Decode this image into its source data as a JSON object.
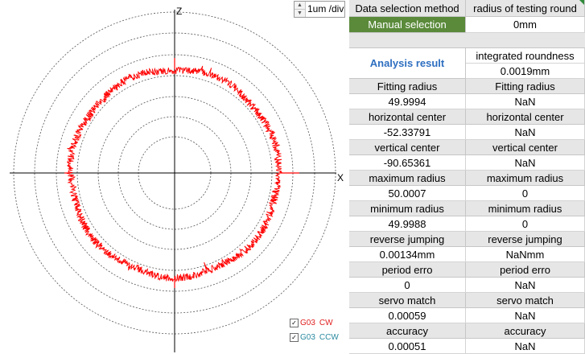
{
  "plot": {
    "z_label": "Z",
    "x_label": "X",
    "scale_value": "1um /div",
    "trace_color": "#ff0000",
    "grid_color": "#555555"
  },
  "legend": [
    {
      "checked": true,
      "code": "G03",
      "label": "CW",
      "color": "#e02020"
    },
    {
      "checked": true,
      "code": "G03",
      "label": "CCW",
      "color": "#2a8aa0"
    }
  ],
  "panel": {
    "header": {
      "left": "Data selection method",
      "right": "radius of testing round"
    },
    "selection": {
      "left": "Manual selection",
      "right": "0mm"
    },
    "analysis_label": "Analysis result",
    "integrated": {
      "label": "integrated roundness",
      "value": "0.0019mm"
    },
    "rows": [
      {
        "label": "Fitting radius",
        "left": "49.9994",
        "right": "NaN"
      },
      {
        "label": "horizontal center",
        "left": "-52.33791",
        "right": "NaN"
      },
      {
        "label": "vertical center",
        "left": "-90.65361",
        "right": "NaN"
      },
      {
        "label": "maximum radius",
        "left": "50.0007",
        "right": "0"
      },
      {
        "label": "minimum radius",
        "left": "49.9988",
        "right": "0"
      },
      {
        "label": "reverse jumping",
        "left": "0.00134mm",
        "right": "NaNmm"
      },
      {
        "label": "period erro",
        "left": "0",
        "right": "NaN"
      },
      {
        "label": "servo match",
        "left": "0.00059",
        "right": "NaN"
      },
      {
        "label": "accuracy",
        "left": "0.00051",
        "right": "NaN"
      }
    ]
  }
}
